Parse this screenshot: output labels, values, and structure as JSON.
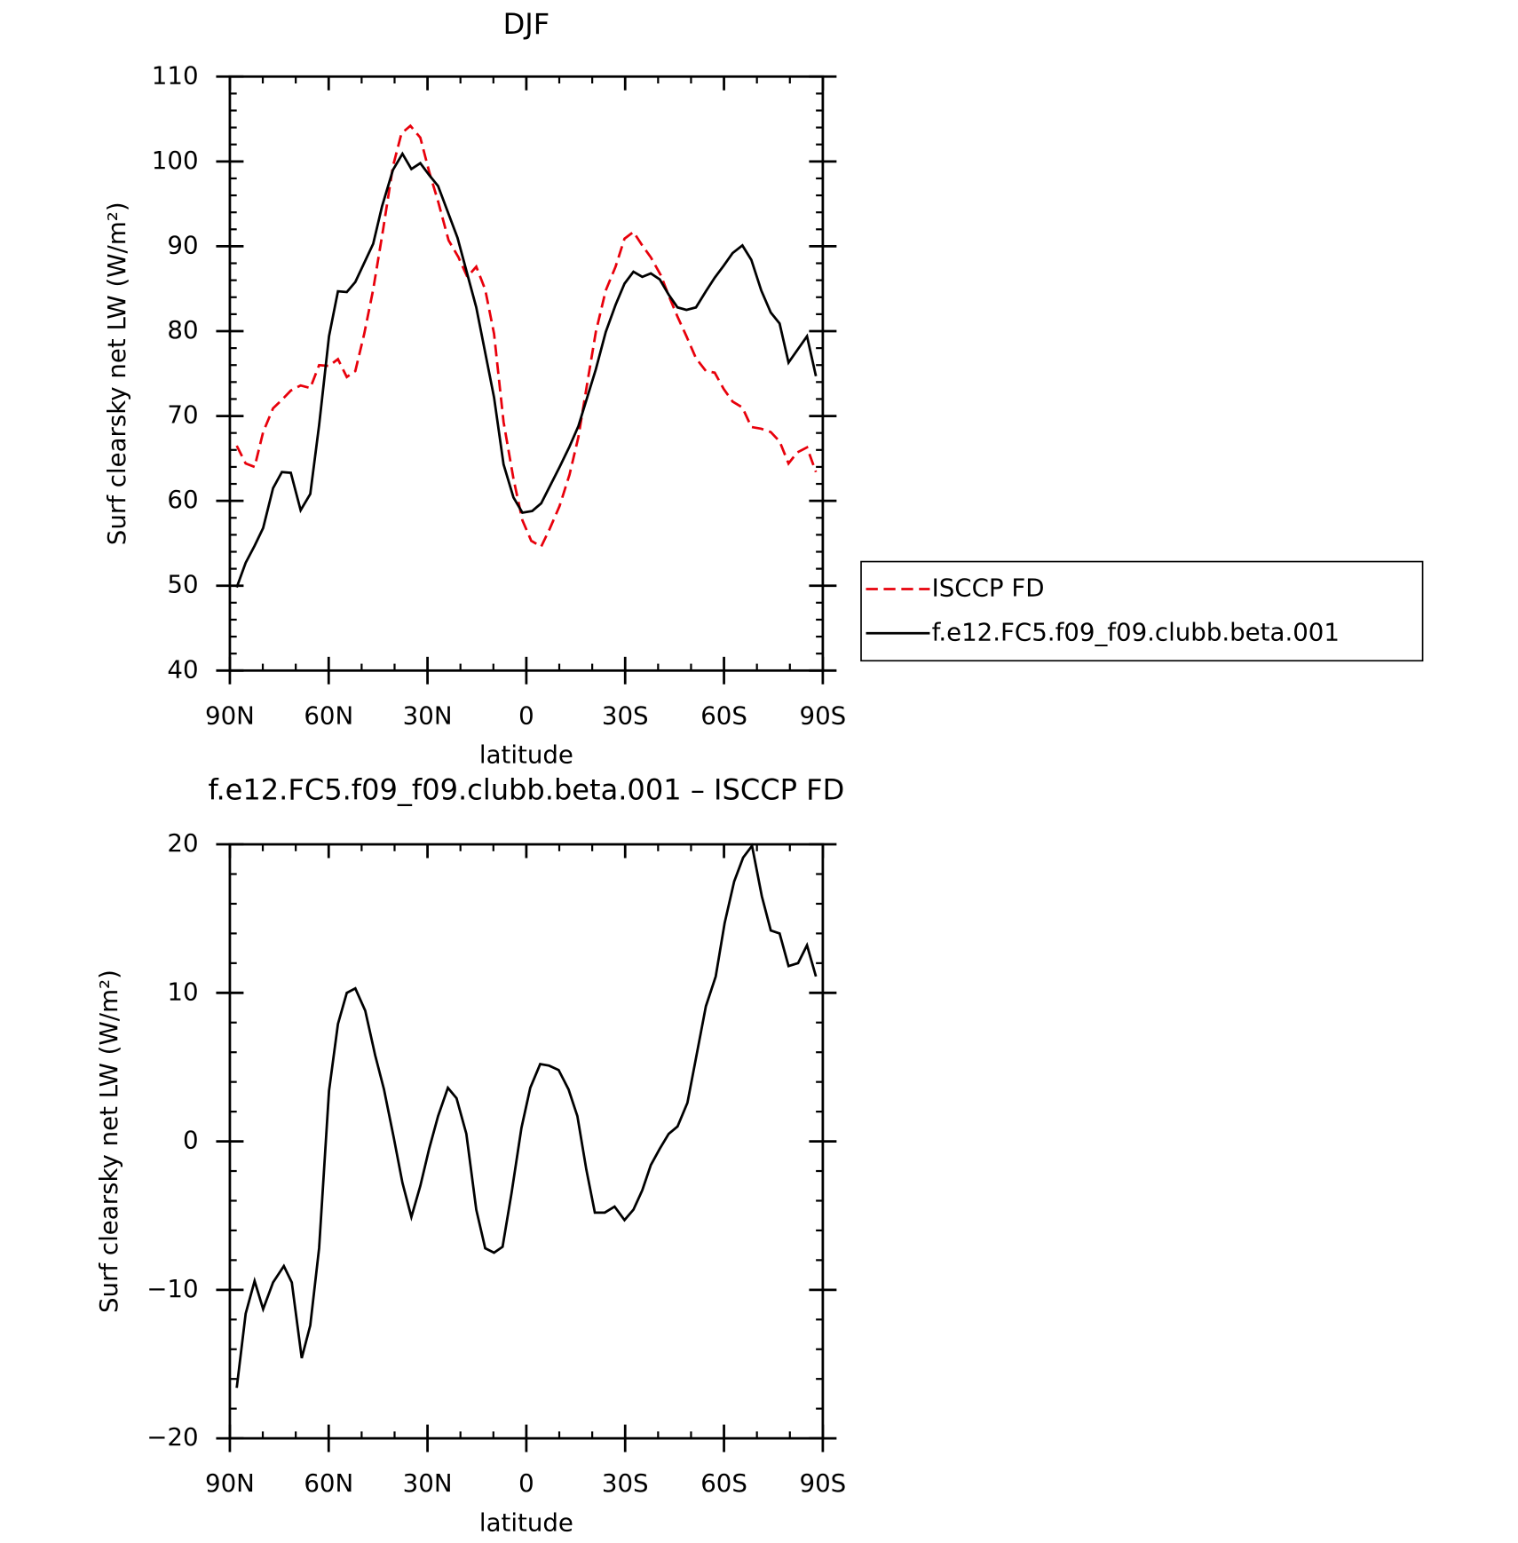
{
  "chart_data": [
    {
      "type": "line",
      "title": "DJF",
      "xlabel": "latitude",
      "ylabel": "Surf clearsky net LW (W/m²)",
      "xlim": [
        90,
        -90
      ],
      "xticks": [
        {
          "value": 90,
          "label": "90N"
        },
        {
          "value": 60,
          "label": "60N"
        },
        {
          "value": 30,
          "label": "30N"
        },
        0,
        {
          "value": -30,
          "label": "30S"
        },
        {
          "value": -60,
          "label": "60S"
        },
        {
          "value": -90,
          "label": "90S"
        }
      ],
      "ylim": [
        40,
        110
      ],
      "yticks": [
        40,
        50,
        60,
        70,
        80,
        90,
        100,
        110
      ],
      "legend": "right",
      "series": [
        {
          "name": "ISCCP FD",
          "color": "#e8000b",
          "dashed": true,
          "x": [
            87.9,
            85.2,
            82.5,
            79.9,
            76.9,
            74.2,
            71.5,
            68.5,
            65.6,
            62.9,
            59.9,
            57.2,
            54.5,
            51.9,
            49.2,
            46.5,
            43.5,
            40.5,
            37.9,
            35.2,
            32.2,
            29.5,
            26.8,
            23.6,
            20.6,
            17.9,
            15.2,
            12.5,
            9.8,
            6.9,
            3.9,
            1.2,
            -1.5,
            -4.5,
            -7.1,
            -10.1,
            -13.1,
            -15.8,
            -18.5,
            -21.1,
            -24.1,
            -27.1,
            -29.8,
            -32.5,
            -35.2,
            -37.8,
            -40.8,
            -43.2,
            -45.9,
            -48.6,
            -51.5,
            -54.5,
            -57.2,
            -59.9,
            -62.6,
            -65.6,
            -68.3,
            -71.3,
            -74.2,
            -76.9,
            -79.6,
            -82.2,
            -85.2,
            -87.9
          ],
          "values": [
            66.5,
            64.4,
            64.0,
            68.1,
            70.9,
            71.9,
            73.0,
            73.6,
            73.3,
            76.0,
            75.9,
            76.7,
            74.6,
            75.3,
            79.7,
            84.9,
            91.9,
            99.4,
            103.3,
            104.2,
            102.8,
            98.8,
            95.3,
            90.7,
            88.7,
            86.4,
            87.6,
            84.9,
            79.7,
            69.3,
            62.6,
            57.7,
            55.3,
            54.6,
            56.7,
            59.4,
            63.1,
            67.5,
            73.9,
            79.9,
            84.8,
            87.6,
            90.9,
            91.7,
            90.1,
            88.7,
            86.6,
            84.2,
            81.7,
            79.4,
            76.8,
            75.3,
            75.1,
            73.2,
            71.7,
            71.0,
            68.7,
            68.5,
            68.1,
            67.0,
            64.4,
            65.7,
            66.3,
            63.4
          ]
        },
        {
          "name": "f.e12.FC5.f09_f09.clubb.beta.001",
          "color": "#000000",
          "dashed": false,
          "x": [
            87.9,
            85.2,
            82.5,
            79.9,
            76.9,
            74.2,
            71.5,
            68.5,
            65.6,
            62.9,
            59.9,
            57.2,
            54.5,
            51.9,
            46.5,
            43.8,
            40.5,
            37.6,
            34.9,
            32.2,
            29.5,
            26.8,
            20.9,
            15.2,
            9.8,
            6.9,
            3.9,
            1.2,
            -1.8,
            -4.5,
            -10.1,
            -13.1,
            -15.8,
            -21.1,
            -24.1,
            -27.1,
            -29.8,
            -32.5,
            -35.2,
            -37.8,
            -40.5,
            -43.2,
            -45.9,
            -48.6,
            -51.5,
            -54.5,
            -57.2,
            -59.9,
            -62.6,
            -65.6,
            -68.3,
            -71.3,
            -74.2,
            -76.9,
            -79.6,
            -85.2,
            -87.9
          ],
          "values": [
            49.8,
            52.7,
            54.7,
            56.8,
            61.5,
            63.4,
            63.3,
            58.9,
            60.8,
            68.9,
            79.4,
            84.7,
            84.6,
            85.8,
            90.3,
            94.7,
            99.0,
            100.9,
            99.1,
            99.8,
            98.4,
            97.1,
            91.0,
            82.8,
            72.2,
            64.3,
            60.4,
            58.6,
            58.8,
            59.7,
            64.0,
            66.4,
            68.8,
            75.5,
            79.9,
            83.1,
            85.6,
            87.0,
            86.4,
            86.8,
            86.1,
            84.3,
            82.8,
            82.5,
            82.8,
            84.7,
            86.3,
            87.7,
            89.2,
            90.1,
            88.4,
            84.8,
            82.2,
            80.9,
            76.3,
            79.4,
            74.7
          ]
        }
      ]
    },
    {
      "type": "line",
      "title": "f.e12.FC5.f09_f09.clubb.beta.001 – ISCCP FD",
      "xlabel": "latitude",
      "ylabel": "Surf clearsky net LW (W/m²)",
      "xlim": [
        90,
        -90
      ],
      "xticks": [
        {
          "value": 90,
          "label": "90N"
        },
        {
          "value": 60,
          "label": "60N"
        },
        {
          "value": 30,
          "label": "30N"
        },
        0,
        {
          "value": -30,
          "label": "30S"
        },
        {
          "value": -60,
          "label": "60S"
        },
        {
          "value": -90,
          "label": "90S"
        }
      ],
      "ylim": [
        -20,
        20
      ],
      "yticks": [
        {
          "value": -20,
          "label": "−20"
        },
        {
          "value": -10,
          "label": "−10"
        },
        0,
        10,
        20
      ],
      "series": [
        {
          "color": "#000000",
          "dashed": false,
          "x": [
            87.9,
            85.2,
            82.5,
            79.9,
            76.9,
            73.6,
            71.2,
            68.2,
            65.6,
            62.9,
            59.9,
            57.2,
            54.5,
            51.9,
            48.9,
            45.9,
            43.2,
            40.2,
            37.6,
            34.9,
            32.2,
            29.5,
            26.8,
            23.8,
            21.2,
            18.2,
            15.2,
            12.5,
            9.8,
            7.2,
            4.5,
            1.5,
            -1.2,
            -4.2,
            -6.9,
            -9.8,
            -12.8,
            -15.5,
            -18.2,
            -20.8,
            -23.8,
            -26.8,
            -29.8,
            -32.5,
            -35.2,
            -37.8,
            -40.5,
            -43.2,
            -45.9,
            -48.9,
            -51.5,
            -54.5,
            -57.5,
            -60.2,
            -63.1,
            -65.8,
            -68.5,
            -71.5,
            -74.2,
            -76.9,
            -79.6,
            -82.5,
            -85.2,
            -87.9
          ],
          "values": [
            -16.6,
            -11.6,
            -9.4,
            -11.3,
            -9.5,
            -8.4,
            -9.5,
            -14.6,
            -12.4,
            -7.2,
            3.4,
            7.9,
            10.0,
            10.3,
            8.8,
            5.8,
            3.5,
            0.2,
            -2.8,
            -5.1,
            -3.0,
            -0.5,
            1.7,
            3.6,
            2.9,
            0.5,
            -4.6,
            -7.2,
            -7.5,
            -7.1,
            -3.5,
            0.9,
            3.6,
            5.2,
            5.1,
            4.8,
            3.5,
            1.7,
            -1.9,
            -4.8,
            -4.8,
            -4.4,
            -5.3,
            -4.6,
            -3.3,
            -1.6,
            -0.5,
            0.5,
            1.0,
            2.6,
            5.6,
            9.1,
            11.1,
            14.7,
            17.5,
            19.1,
            19.9,
            16.5,
            14.2,
            14.0,
            11.8,
            12.0,
            13.2,
            11.1
          ]
        }
      ]
    }
  ]
}
